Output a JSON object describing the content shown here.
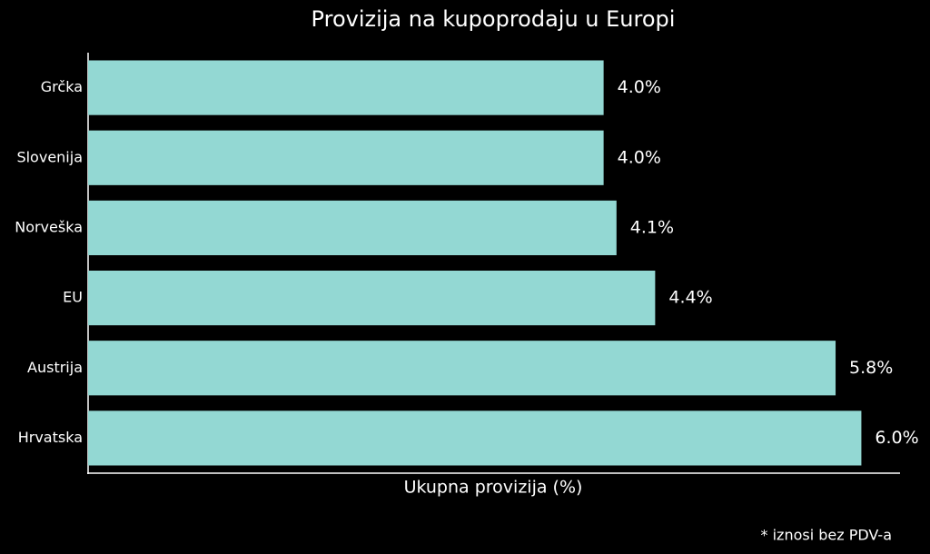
{
  "chart_data": {
    "type": "bar",
    "orientation": "horizontal",
    "title": "Provizija na kupoprodaju u Europi",
    "xlabel": "Ukupna provizija (%)",
    "footnote": "* iznosi bez PDV-a",
    "categories": [
      "Grčka",
      "Slovenija",
      "Norveška",
      "EU",
      "Austrija",
      "Hrvatska"
    ],
    "values": [
      4.0,
      4.0,
      4.1,
      4.4,
      5.8,
      6.0
    ],
    "value_labels": [
      "4.0%",
      "4.0%",
      "4.1%",
      "4.4%",
      "5.8%",
      "6.0%"
    ],
    "color": "#93d8d3",
    "xlim": [
      0,
      6.3
    ]
  }
}
